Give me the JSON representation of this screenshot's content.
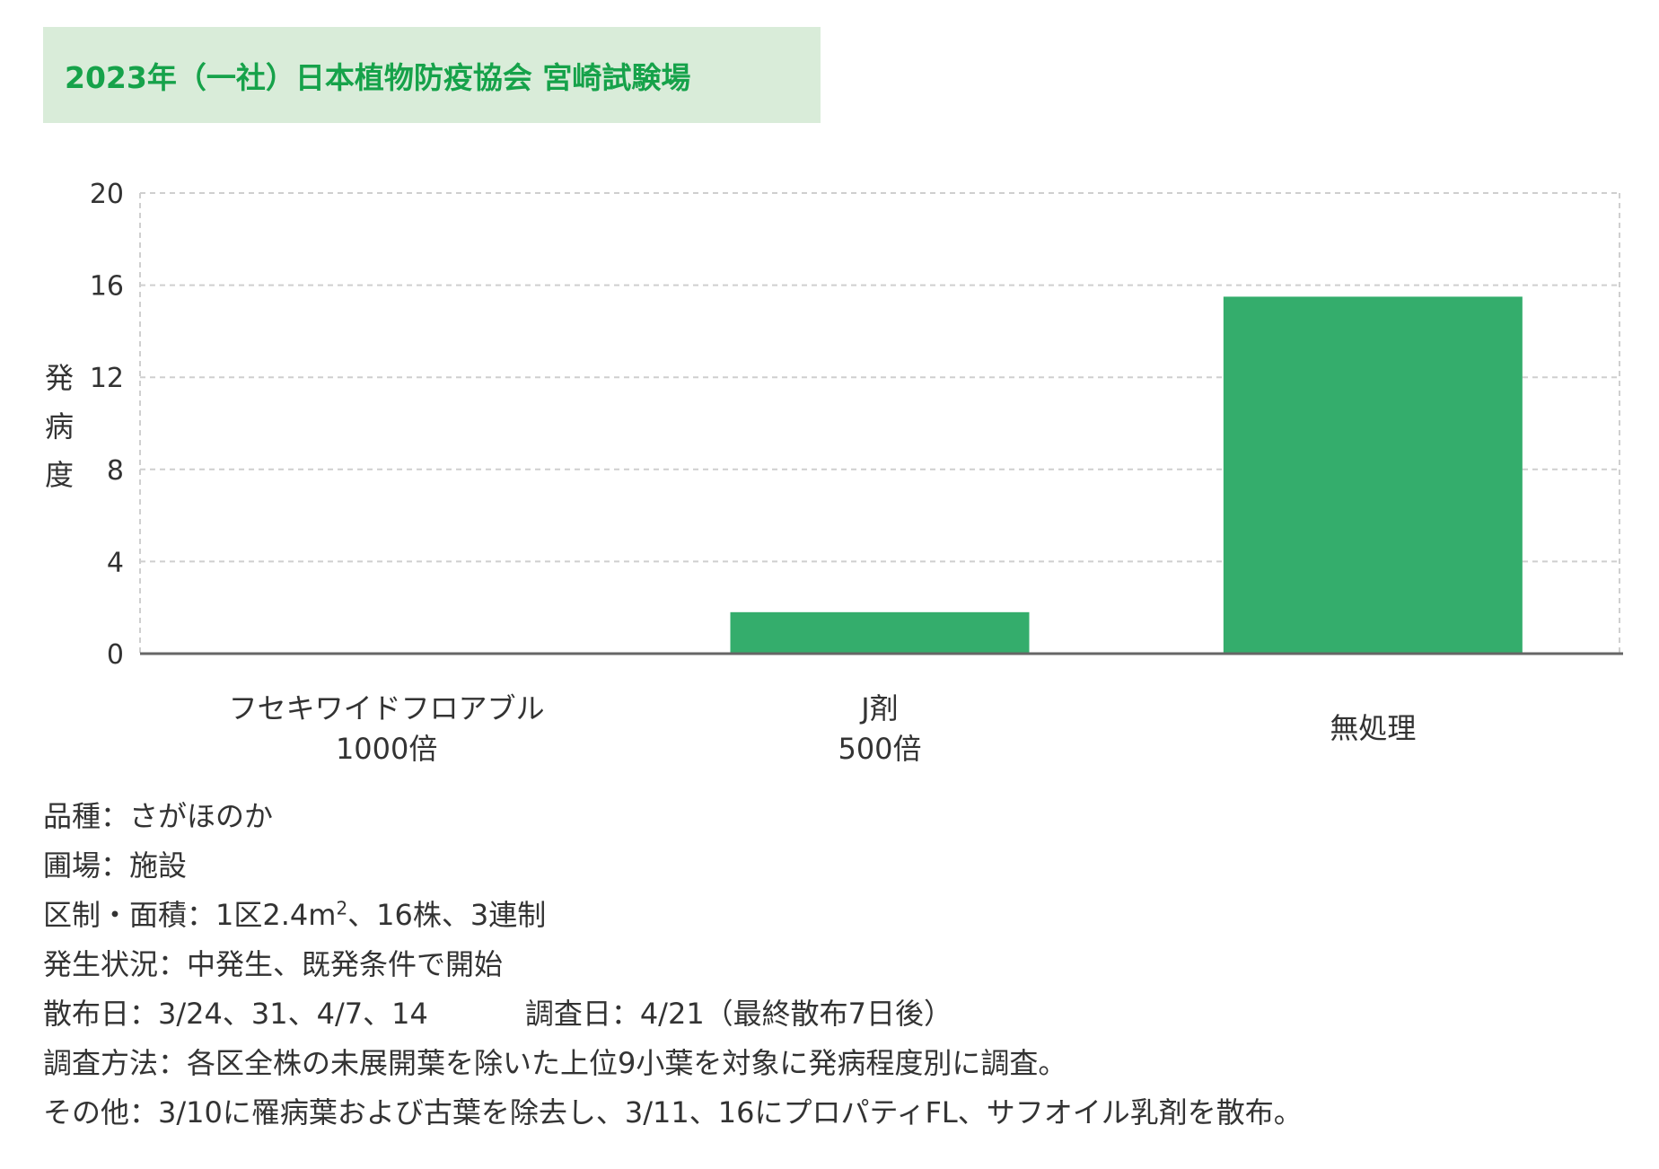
{
  "header": {
    "title": "2023年（一社）日本植物防疫協会 宮崎試験場"
  },
  "chart_data": {
    "type": "bar",
    "ylabel": "発病度",
    "ylim": [
      0,
      20
    ],
    "yticks": [
      0,
      4,
      8,
      12,
      16,
      20
    ],
    "grid": true,
    "categories": [
      [
        "フセキワイドフロアブル",
        "1000倍"
      ],
      [
        "J剤",
        "500倍"
      ],
      [
        "無処理"
      ]
    ],
    "values": [
      0,
      1.8,
      15.5
    ],
    "bar_color": "#34ad6c"
  },
  "notes": {
    "variety": "品種：さがほのか",
    "field": "圃場：施設",
    "plot_prefix": "区制・面積：1区2.4m",
    "plot_sup": "2",
    "plot_suffix": "、16株、3連制",
    "occurrence": "発生状況：中発生、既発条件で開始",
    "spray_dates": "散布日：3/24、31、4/7、14",
    "survey_date": "調査日：4/21（最終散布7日後）",
    "method": "調査方法：各区全株の未展開葉を除いた上位9小葉を対象に発病程度別に調査。",
    "other": "その他：3/10に罹病葉および古葉を除去し、3/11、16にプロパティFL、サフオイル乳剤を散布。"
  }
}
